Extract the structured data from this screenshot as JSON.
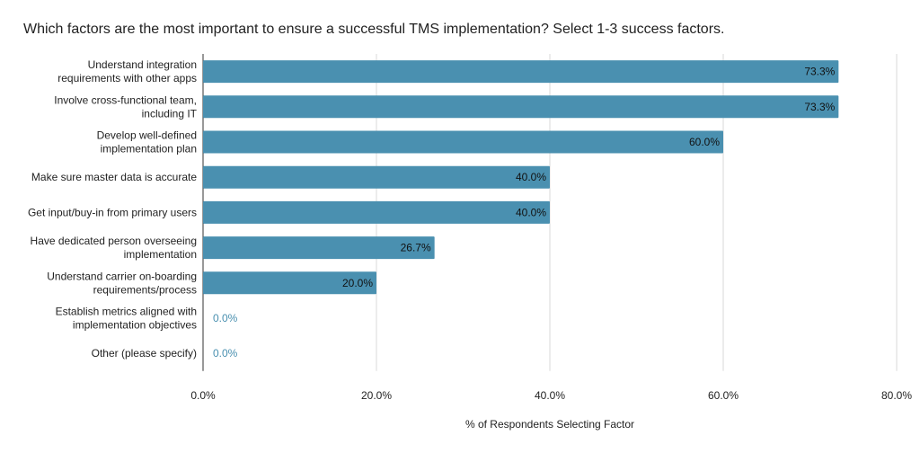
{
  "chart_data": {
    "type": "bar",
    "orientation": "horizontal",
    "title": "Which factors are the most important to ensure a successful TMS implementation? Select 1-3 success factors.",
    "xlabel": "% of Respondents Selecting Factor",
    "ylabel": "",
    "xlim": [
      0,
      80
    ],
    "x_ticks": [
      0,
      20,
      40,
      60,
      80
    ],
    "x_tick_labels": [
      "0.0%",
      "20.0%",
      "40.0%",
      "60.0%",
      "80.0%"
    ],
    "grid": true,
    "legend": "none",
    "bar_color": "#4a90b0",
    "zero_label_color": "#4a90b0",
    "categories": [
      [
        "Understand integration",
        "requirements with other apps"
      ],
      [
        "Involve cross-functional team,",
        "including IT"
      ],
      [
        "Develop well-defined",
        "implementation plan"
      ],
      [
        "Make sure master data is accurate"
      ],
      [
        "Get input/buy-in from primary users"
      ],
      [
        "Have dedicated person overseeing",
        "implementation"
      ],
      [
        "Understand carrier on-boarding",
        "requirements/process"
      ],
      [
        "Establish metrics aligned with",
        "implementation objectives"
      ],
      [
        "Other (please specify)"
      ]
    ],
    "values": [
      73.3,
      73.3,
      60.0,
      40.0,
      40.0,
      26.7,
      20.0,
      0.0,
      0.0
    ],
    "data_labels": [
      "73.3%",
      "73.3%",
      "60.0%",
      "40.0%",
      "40.0%",
      "26.7%",
      "20.0%",
      "0.0%",
      "0.0%"
    ]
  }
}
